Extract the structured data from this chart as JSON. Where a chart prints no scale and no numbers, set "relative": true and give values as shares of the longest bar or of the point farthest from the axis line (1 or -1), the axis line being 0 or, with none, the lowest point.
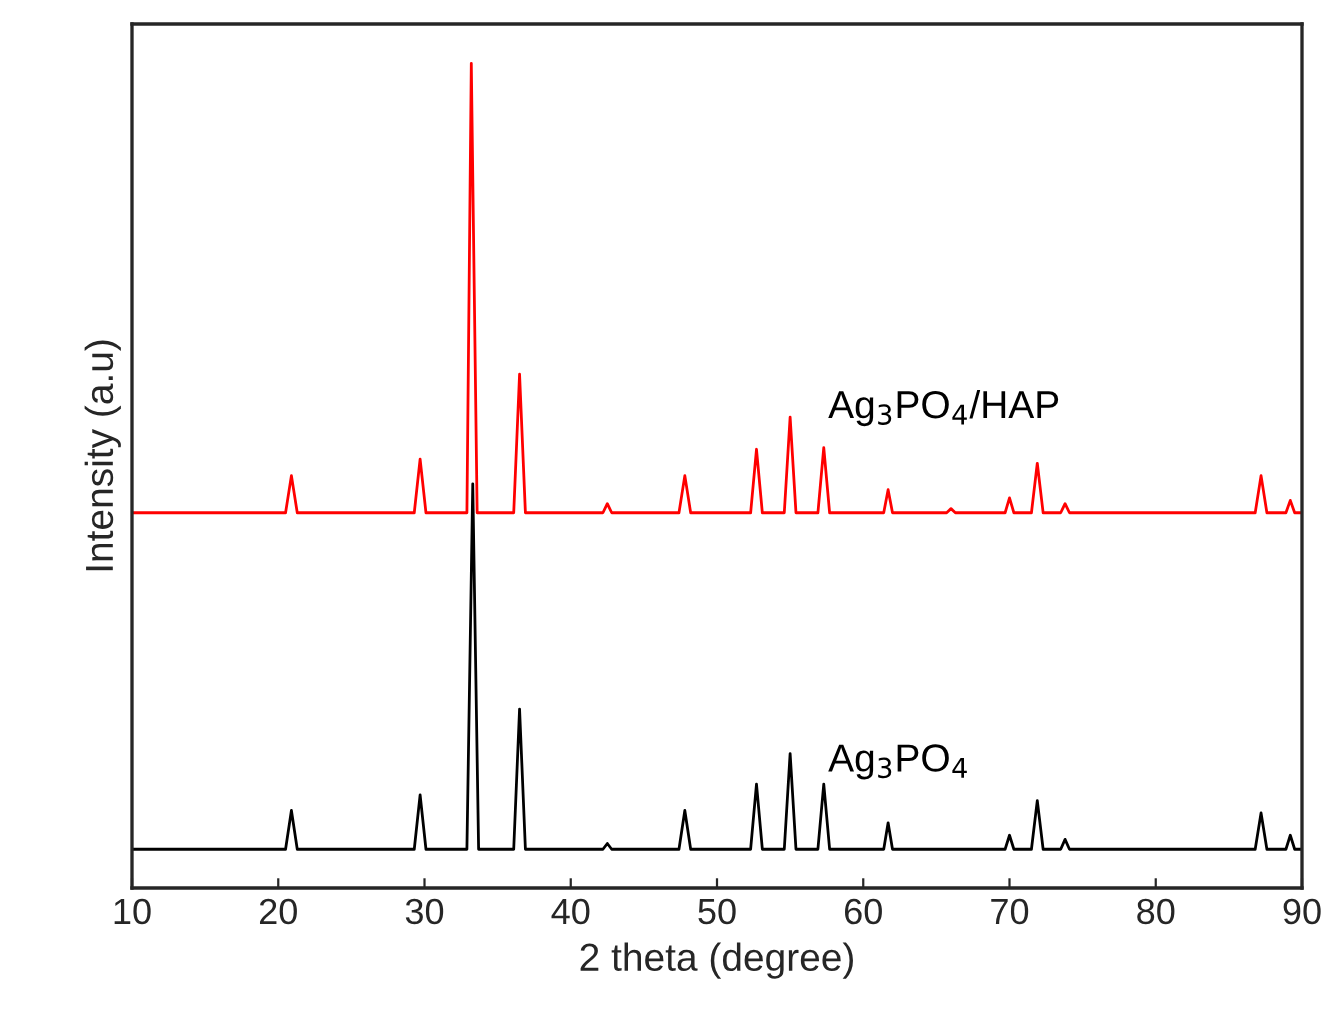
{
  "chart_data": {
    "type": "line",
    "relative": true,
    "xlabel": "2 theta (degree)",
    "ylabel": "Intensity (a.u)",
    "xlim": [
      10,
      90
    ],
    "xticks": [
      10,
      20,
      30,
      40,
      50,
      60,
      70,
      80,
      90
    ],
    "tick_labels": "x",
    "grid": false,
    "legend": false,
    "marker": "none",
    "line_style": "solid",
    "series": [
      {
        "name": "Ag$_{3}$PO$_{4}$/HAP",
        "color": "#ff0000",
        "x": [
          10,
          20.5,
          20.9,
          21.3,
          29.3,
          29.7,
          30.1,
          32.9,
          33.2,
          33.6,
          36.1,
          36.5,
          36.9,
          42.2,
          42.5,
          42.8,
          47.4,
          47.8,
          48.2,
          52.3,
          52.7,
          53.1,
          54.6,
          55.0,
          55.4,
          56.9,
          57.3,
          57.7,
          61.4,
          61.7,
          62.0,
          65.7,
          66.0,
          66.3,
          69.7,
          70.0,
          70.3,
          71.5,
          71.9,
          72.3,
          73.5,
          73.8,
          74.1,
          86.8,
          87.2,
          87.6,
          88.9,
          89.2,
          89.5,
          90
        ],
        "values": [
          0.455,
          0.455,
          0.5,
          0.455,
          0.455,
          0.52,
          0.455,
          0.455,
          1.0,
          0.455,
          0.455,
          0.623,
          0.455,
          0.455,
          0.466,
          0.455,
          0.455,
          0.5,
          0.455,
          0.455,
          0.532,
          0.455,
          0.455,
          0.571,
          0.455,
          0.455,
          0.534,
          0.455,
          0.455,
          0.483,
          0.455,
          0.455,
          0.46,
          0.455,
          0.455,
          0.473,
          0.455,
          0.455,
          0.515,
          0.455,
          0.455,
          0.466,
          0.455,
          0.455,
          0.5,
          0.455,
          0.455,
          0.47,
          0.455,
          0.455
        ]
      },
      {
        "name": "Ag$_{3}$PO$_{4}$",
        "color": "#000000",
        "x": [
          10,
          20.5,
          20.9,
          21.3,
          29.3,
          29.7,
          30.1,
          32.9,
          33.3,
          33.7,
          36.1,
          36.5,
          36.9,
          42.2,
          42.5,
          42.8,
          47.4,
          47.8,
          48.2,
          52.3,
          52.7,
          53.1,
          54.6,
          55.0,
          55.4,
          56.9,
          57.3,
          57.7,
          61.4,
          61.7,
          62.0,
          69.7,
          70.0,
          70.3,
          71.5,
          71.9,
          72.3,
          73.5,
          73.8,
          74.1,
          86.8,
          87.2,
          87.6,
          88.9,
          89.2,
          89.5,
          90
        ],
        "values": [
          0.047,
          0.047,
          0.094,
          0.047,
          0.047,
          0.113,
          0.047,
          0.047,
          0.49,
          0.047,
          0.047,
          0.217,
          0.047,
          0.047,
          0.054,
          0.047,
          0.047,
          0.094,
          0.047,
          0.047,
          0.126,
          0.047,
          0.047,
          0.163,
          0.047,
          0.047,
          0.126,
          0.047,
          0.047,
          0.079,
          0.047,
          0.047,
          0.064,
          0.047,
          0.047,
          0.106,
          0.047,
          0.047,
          0.059,
          0.047,
          0.047,
          0.091,
          0.047,
          0.047,
          0.064,
          0.047,
          0.047
        ]
      }
    ]
  }
}
